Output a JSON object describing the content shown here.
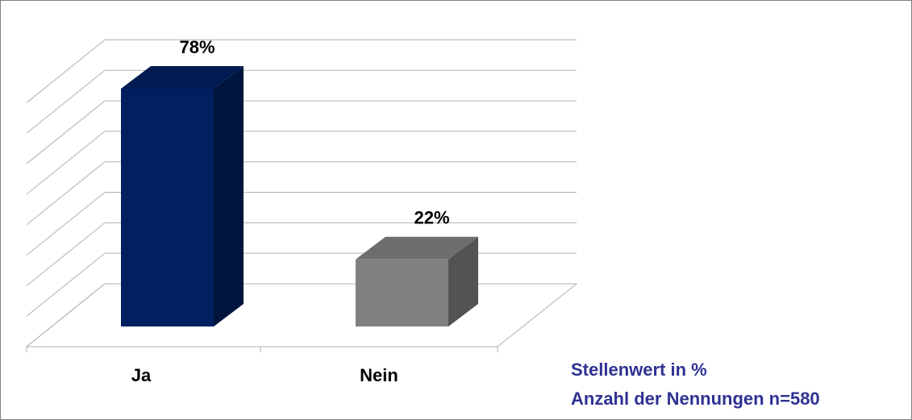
{
  "chart_data": {
    "type": "bar3d",
    "categories": [
      "Ja",
      "Nein"
    ],
    "values": [
      78,
      22
    ],
    "value_labels": [
      "78%",
      "22%"
    ],
    "colors": [
      "#002060",
      "#808080"
    ],
    "ylim": [
      0,
      80
    ],
    "yticks": [
      0,
      10,
      20,
      30,
      40,
      50,
      60,
      70,
      80
    ],
    "grid": true,
    "annotations": [
      "Stellenwert in %",
      "Anzahl der Nennungen n=580"
    ]
  }
}
